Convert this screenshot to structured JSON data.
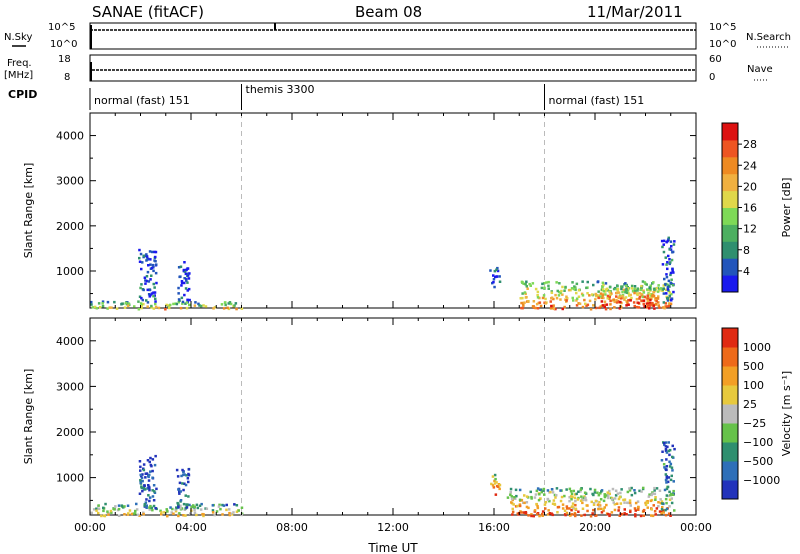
{
  "header": {
    "station": "SANAE (fitACF)",
    "beam": "Beam 08",
    "date": "11/Mar/2011"
  },
  "small_panels": {
    "nsky_label": "N.Sky",
    "nsearch_label": "N.Search",
    "freq_label": "Freq.",
    "freq_unit": "[MHz]",
    "nave_label": "Nave",
    "cpid_label": "CPID",
    "nsky_ticks": [
      "10^5",
      "10^0"
    ],
    "nsearch_ticks": [
      "10^5",
      "10^0"
    ],
    "freq_ticks": [
      "18",
      "8"
    ],
    "nave_ticks": [
      "60",
      "0"
    ]
  },
  "cpid_segments": [
    {
      "label": "normal (fast) 151",
      "start": 0,
      "end": 6
    },
    {
      "label": "themis 3300",
      "start": 6,
      "end": 18
    },
    {
      "label": "normal (fast) 151",
      "start": 18,
      "end": 24
    }
  ],
  "chart_data": [
    {
      "type": "heatmap",
      "parameter": "power",
      "xlabel": "",
      "ylabel": "Slant Range [km]",
      "ylim": [
        180,
        4500
      ],
      "yticks": [
        1000,
        2000,
        3000,
        4000
      ],
      "xlim": [
        0,
        24
      ],
      "colorbar": {
        "label": "Power [dB]",
        "range": [
          0,
          32
        ],
        "ticks": [
          4,
          8,
          12,
          16,
          20,
          24,
          28
        ],
        "colors": [
          "#1a1aee",
          "#2255bb",
          "#2f8f6f",
          "#4caf60",
          "#7ed957",
          "#e0d84a",
          "#f0b040",
          "#ee8a22",
          "#ee5522",
          "#dd1111"
        ]
      },
      "echo_regions": [
        {
          "t0": 0.0,
          "t1": 6.0,
          "r0": 180,
          "r1": 350,
          "level": 0.55
        },
        {
          "t0": 1.9,
          "t1": 2.6,
          "r0": 350,
          "r1": 1500,
          "level": 0.15
        },
        {
          "t0": 3.4,
          "t1": 3.9,
          "r0": 350,
          "r1": 1250,
          "level": 0.15
        },
        {
          "t0": 15.8,
          "t1": 16.2,
          "r0": 650,
          "r1": 1100,
          "level": 0.15
        },
        {
          "t0": 17.0,
          "t1": 23.0,
          "r0": 180,
          "r1": 800,
          "level": 0.7
        },
        {
          "t0": 20.0,
          "t1": 22.5,
          "r0": 250,
          "r1": 700,
          "level": 0.85
        },
        {
          "t0": 22.6,
          "t1": 23.1,
          "r0": 300,
          "r1": 1800,
          "level": 0.2
        }
      ]
    },
    {
      "type": "heatmap",
      "parameter": "velocity",
      "xlabel": "Time UT",
      "ylabel": "Slant Range [km]",
      "ylim": [
        180,
        4500
      ],
      "yticks": [
        1000,
        2000,
        3000,
        4000
      ],
      "xlim": [
        0,
        24
      ],
      "xticks": [
        "00:00",
        "04:00",
        "08:00",
        "12:00",
        "16:00",
        "20:00",
        "00:00"
      ],
      "colorbar": {
        "label": "Velocity [m s⁻¹]",
        "ticks": [
          "1000",
          "500",
          "100",
          "25",
          "−25",
          "−100",
          "−500",
          "−1000"
        ],
        "colors": [
          "#2233bb",
          "#2e6fb8",
          "#2f8f6f",
          "#66c24a",
          "#bbbbbb",
          "#e7c93d",
          "#f29f25",
          "#ee6a1a",
          "#e02a12"
        ]
      },
      "echo_regions": [
        {
          "t0": 0.0,
          "t1": 6.0,
          "r0": 180,
          "r1": 450,
          "level": 0.55
        },
        {
          "t0": 1.9,
          "t1": 2.6,
          "r0": 350,
          "r1": 1500,
          "level": 0.15
        },
        {
          "t0": 3.4,
          "t1": 3.9,
          "r0": 350,
          "r1": 1250,
          "level": 0.15
        },
        {
          "t0": 15.8,
          "t1": 16.2,
          "r0": 650,
          "r1": 1100,
          "level": 0.85
        },
        {
          "t0": 16.5,
          "t1": 23.0,
          "r0": 180,
          "r1": 800,
          "level": 0.75
        },
        {
          "t0": 22.6,
          "t1": 23.1,
          "r0": 300,
          "r1": 1800,
          "level": 0.25
        }
      ]
    }
  ]
}
